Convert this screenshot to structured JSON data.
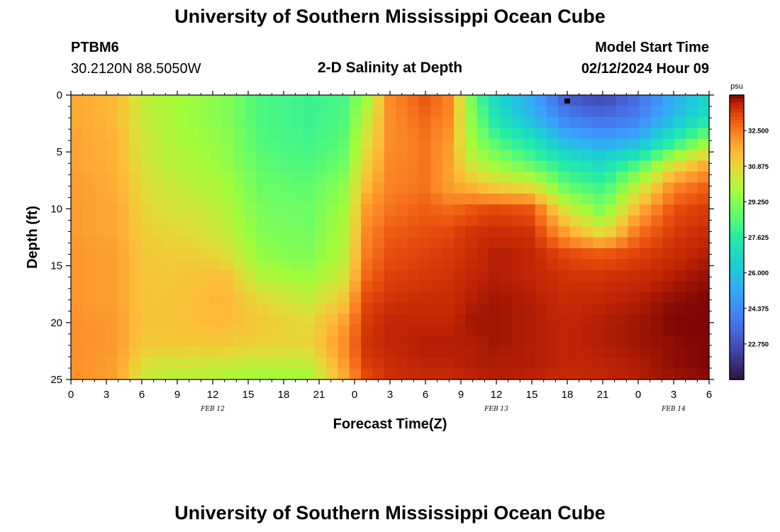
{
  "header": {
    "title": "University of Southern Mississippi Ocean Cube",
    "station_id": "PTBM6",
    "station_location": "30.2120N  88.5050W",
    "chart_subtitle": "2-D Salinity at Depth",
    "model_start_label": "Model Start Time",
    "model_start_value": "02/12/2024 Hour 09"
  },
  "footer": {
    "title": "University of Southern Mississippi Ocean Cube"
  },
  "colors": {
    "background": "#ffffff",
    "marker": "#000000"
  },
  "chart_data": {
    "type": "heatmap",
    "title": "2-D Salinity at Depth",
    "xlabel": "Forecast Time(Z)",
    "ylabel": "Depth (ft)",
    "x_ticks": [
      "0",
      "3",
      "6",
      "9",
      "12",
      "15",
      "18",
      "21",
      "0",
      "3",
      "6",
      "9",
      "12",
      "15",
      "18",
      "21",
      "0",
      "3",
      "6"
    ],
    "x_hours_range": [
      0,
      54
    ],
    "date_labels": [
      {
        "label": "FEB 12",
        "hour": 12
      },
      {
        "label": "FEB 13",
        "hour": 36
      },
      {
        "label": "FEB 14",
        "hour": 51
      }
    ],
    "y_ticks": [
      0,
      5,
      10,
      15,
      20,
      25
    ],
    "ylim": [
      0,
      25
    ],
    "colorbar": {
      "unit": "psu",
      "range": [
        21.125,
        34.125
      ],
      "tick_labels": [
        "32.500",
        "30.875",
        "29.250",
        "27.625",
        "26.000",
        "24.375",
        "22.750"
      ],
      "tick_values": [
        32.5,
        30.875,
        29.25,
        27.625,
        26.0,
        24.375,
        22.75
      ]
    },
    "grid_resolution": {
      "time_steps": 55,
      "depth_levels": 26
    },
    "marker": {
      "hour": 42,
      "depth_ft": 0.3
    },
    "salinity_anchors": {
      "note": "Estimated salinity (psu) read off the image at selected times (hours from start) and depths (ft); the script interpolates between them.",
      "hours": [
        0,
        4,
        6,
        8,
        10,
        13,
        16,
        20,
        23,
        25,
        27,
        30,
        32,
        34,
        36,
        39,
        42,
        45,
        48,
        51,
        54
      ],
      "depths": [
        0,
        2,
        4,
        6,
        8,
        10,
        12,
        14,
        16,
        18,
        20,
        22,
        24,
        25
      ],
      "values": [
        [
          31.8,
          31.5,
          30.2,
          29.8,
          29.6,
          29.2,
          28.3,
          28.0,
          28.2,
          29.5,
          32.3,
          33.0,
          32.4,
          28.8,
          26.5,
          25.2,
          22.8,
          22.4,
          23.5,
          25.3,
          26.5
        ],
        [
          31.8,
          31.5,
          30.3,
          29.9,
          29.6,
          29.2,
          28.3,
          28.0,
          28.3,
          30.2,
          32.2,
          32.8,
          32.3,
          29.2,
          27.2,
          25.6,
          24.0,
          23.5,
          24.0,
          25.8,
          27.2
        ],
        [
          31.9,
          31.6,
          30.5,
          30.0,
          29.7,
          29.4,
          28.4,
          28.1,
          28.5,
          30.6,
          32.2,
          32.6,
          32.0,
          29.5,
          28.3,
          27.2,
          25.5,
          25.0,
          25.5,
          27.5,
          29.5
        ],
        [
          31.9,
          31.6,
          30.6,
          30.1,
          29.9,
          29.5,
          28.6,
          28.3,
          28.8,
          31.0,
          32.3,
          32.6,
          31.9,
          30.2,
          29.5,
          28.5,
          27.4,
          26.8,
          28.2,
          30.5,
          31.8
        ],
        [
          32.0,
          31.7,
          30.8,
          30.4,
          30.1,
          29.8,
          28.8,
          28.6,
          29.3,
          31.5,
          32.4,
          32.6,
          31.9,
          31.5,
          31.0,
          30.6,
          28.6,
          28.0,
          30.2,
          32.3,
          32.9
        ],
        [
          32.0,
          31.8,
          31.0,
          30.6,
          30.5,
          30.0,
          29.0,
          28.8,
          29.6,
          32.0,
          32.6,
          32.9,
          32.7,
          33.0,
          33.2,
          33.0,
          30.4,
          29.0,
          31.6,
          33.1,
          33.4
        ],
        [
          32.0,
          31.8,
          31.1,
          30.9,
          30.8,
          30.3,
          29.2,
          28.9,
          29.8,
          32.3,
          32.9,
          33.1,
          33.2,
          33.5,
          33.6,
          33.5,
          31.8,
          30.6,
          32.6,
          33.4,
          33.6
        ],
        [
          32.1,
          31.9,
          31.2,
          31.1,
          31.1,
          30.8,
          29.4,
          29.1,
          30.0,
          32.5,
          33.1,
          33.3,
          33.4,
          33.6,
          33.8,
          33.7,
          33.2,
          33.0,
          33.3,
          33.6,
          33.8
        ],
        [
          32.1,
          31.9,
          31.3,
          31.2,
          31.3,
          31.5,
          30.0,
          29.6,
          30.4,
          32.8,
          33.3,
          33.4,
          33.5,
          33.7,
          33.8,
          33.7,
          33.5,
          33.5,
          33.6,
          33.8,
          34.0
        ],
        [
          32.1,
          31.9,
          31.3,
          31.3,
          31.4,
          31.6,
          30.9,
          30.2,
          31.2,
          33.2,
          33.5,
          33.6,
          33.6,
          33.8,
          33.9,
          33.8,
          33.6,
          33.7,
          33.8,
          34.0,
          34.1
        ],
        [
          32.2,
          32.0,
          31.3,
          31.3,
          31.4,
          31.5,
          31.2,
          30.8,
          31.9,
          33.4,
          33.7,
          33.7,
          33.7,
          33.9,
          33.9,
          33.8,
          33.7,
          33.8,
          33.9,
          34.1,
          34.1
        ],
        [
          32.2,
          32.0,
          31.2,
          31.2,
          31.2,
          31.2,
          31.0,
          30.9,
          32.2,
          33.5,
          33.7,
          33.8,
          33.8,
          33.8,
          33.9,
          33.8,
          33.7,
          33.8,
          33.9,
          34.0,
          34.1
        ],
        [
          32.2,
          31.9,
          30.6,
          30.3,
          30.3,
          30.2,
          30.0,
          30.0,
          31.9,
          33.3,
          33.6,
          33.7,
          33.7,
          33.8,
          33.8,
          33.8,
          33.7,
          33.7,
          33.8,
          34.0,
          34.1
        ],
        [
          32.2,
          31.9,
          30.4,
          30.0,
          30.0,
          29.8,
          29.6,
          29.6,
          31.6,
          33.1,
          33.5,
          33.6,
          33.6,
          33.7,
          33.8,
          33.7,
          33.6,
          33.7,
          33.8,
          33.9,
          34.0
        ]
      ]
    }
  }
}
